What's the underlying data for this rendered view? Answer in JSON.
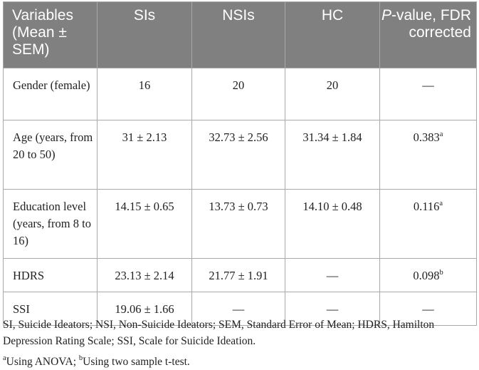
{
  "header": {
    "variables": "Variables (Mean ± SEM)",
    "sis": "SIs",
    "nsis": "NSIs",
    "hc": "HC",
    "pvalue_p": "P",
    "pvalue_rest": "-value, FDR corrected"
  },
  "rows": [
    {
      "label": "Gender (female)",
      "sis": "16",
      "nsis": "20",
      "hc": "20",
      "p": "—",
      "sup": ""
    },
    {
      "label": "Age (years, from 20 to 50)",
      "sis": "31 ± 2.13",
      "nsis": "32.73 ± 2.56",
      "hc": "31.34 ± 1.84",
      "p": "0.383",
      "sup": "a"
    },
    {
      "label": "Education level (years, from 8 to 16)",
      "sis": "14.15 ± 0.65",
      "nsis": "13.73 ± 0.73",
      "hc": "14.10 ± 0.48",
      "p": "0.116",
      "sup": "a"
    },
    {
      "label": "HDRS",
      "sis": "23.13 ± 2.14",
      "nsis": "21.77 ± 1.91",
      "hc": "—",
      "p": "0.098",
      "sup": "b"
    },
    {
      "label": "SSI",
      "sis": "19.06 ± 1.66",
      "nsis": "—",
      "hc": "—",
      "p": "—",
      "sup": ""
    }
  ],
  "footnotes": {
    "abbreviations": "SI, Suicide Ideators; NSI, Non-Suicide Ideators; SEM, Standard Error of Mean; HDRS, Hamilton Depression Rating Scale; SSI, Scale for Suicide Ideation.",
    "mark_a": "a",
    "text_a": "Using ANOVA; ",
    "mark_b": "b",
    "text_b": "Using two sample t-test."
  }
}
